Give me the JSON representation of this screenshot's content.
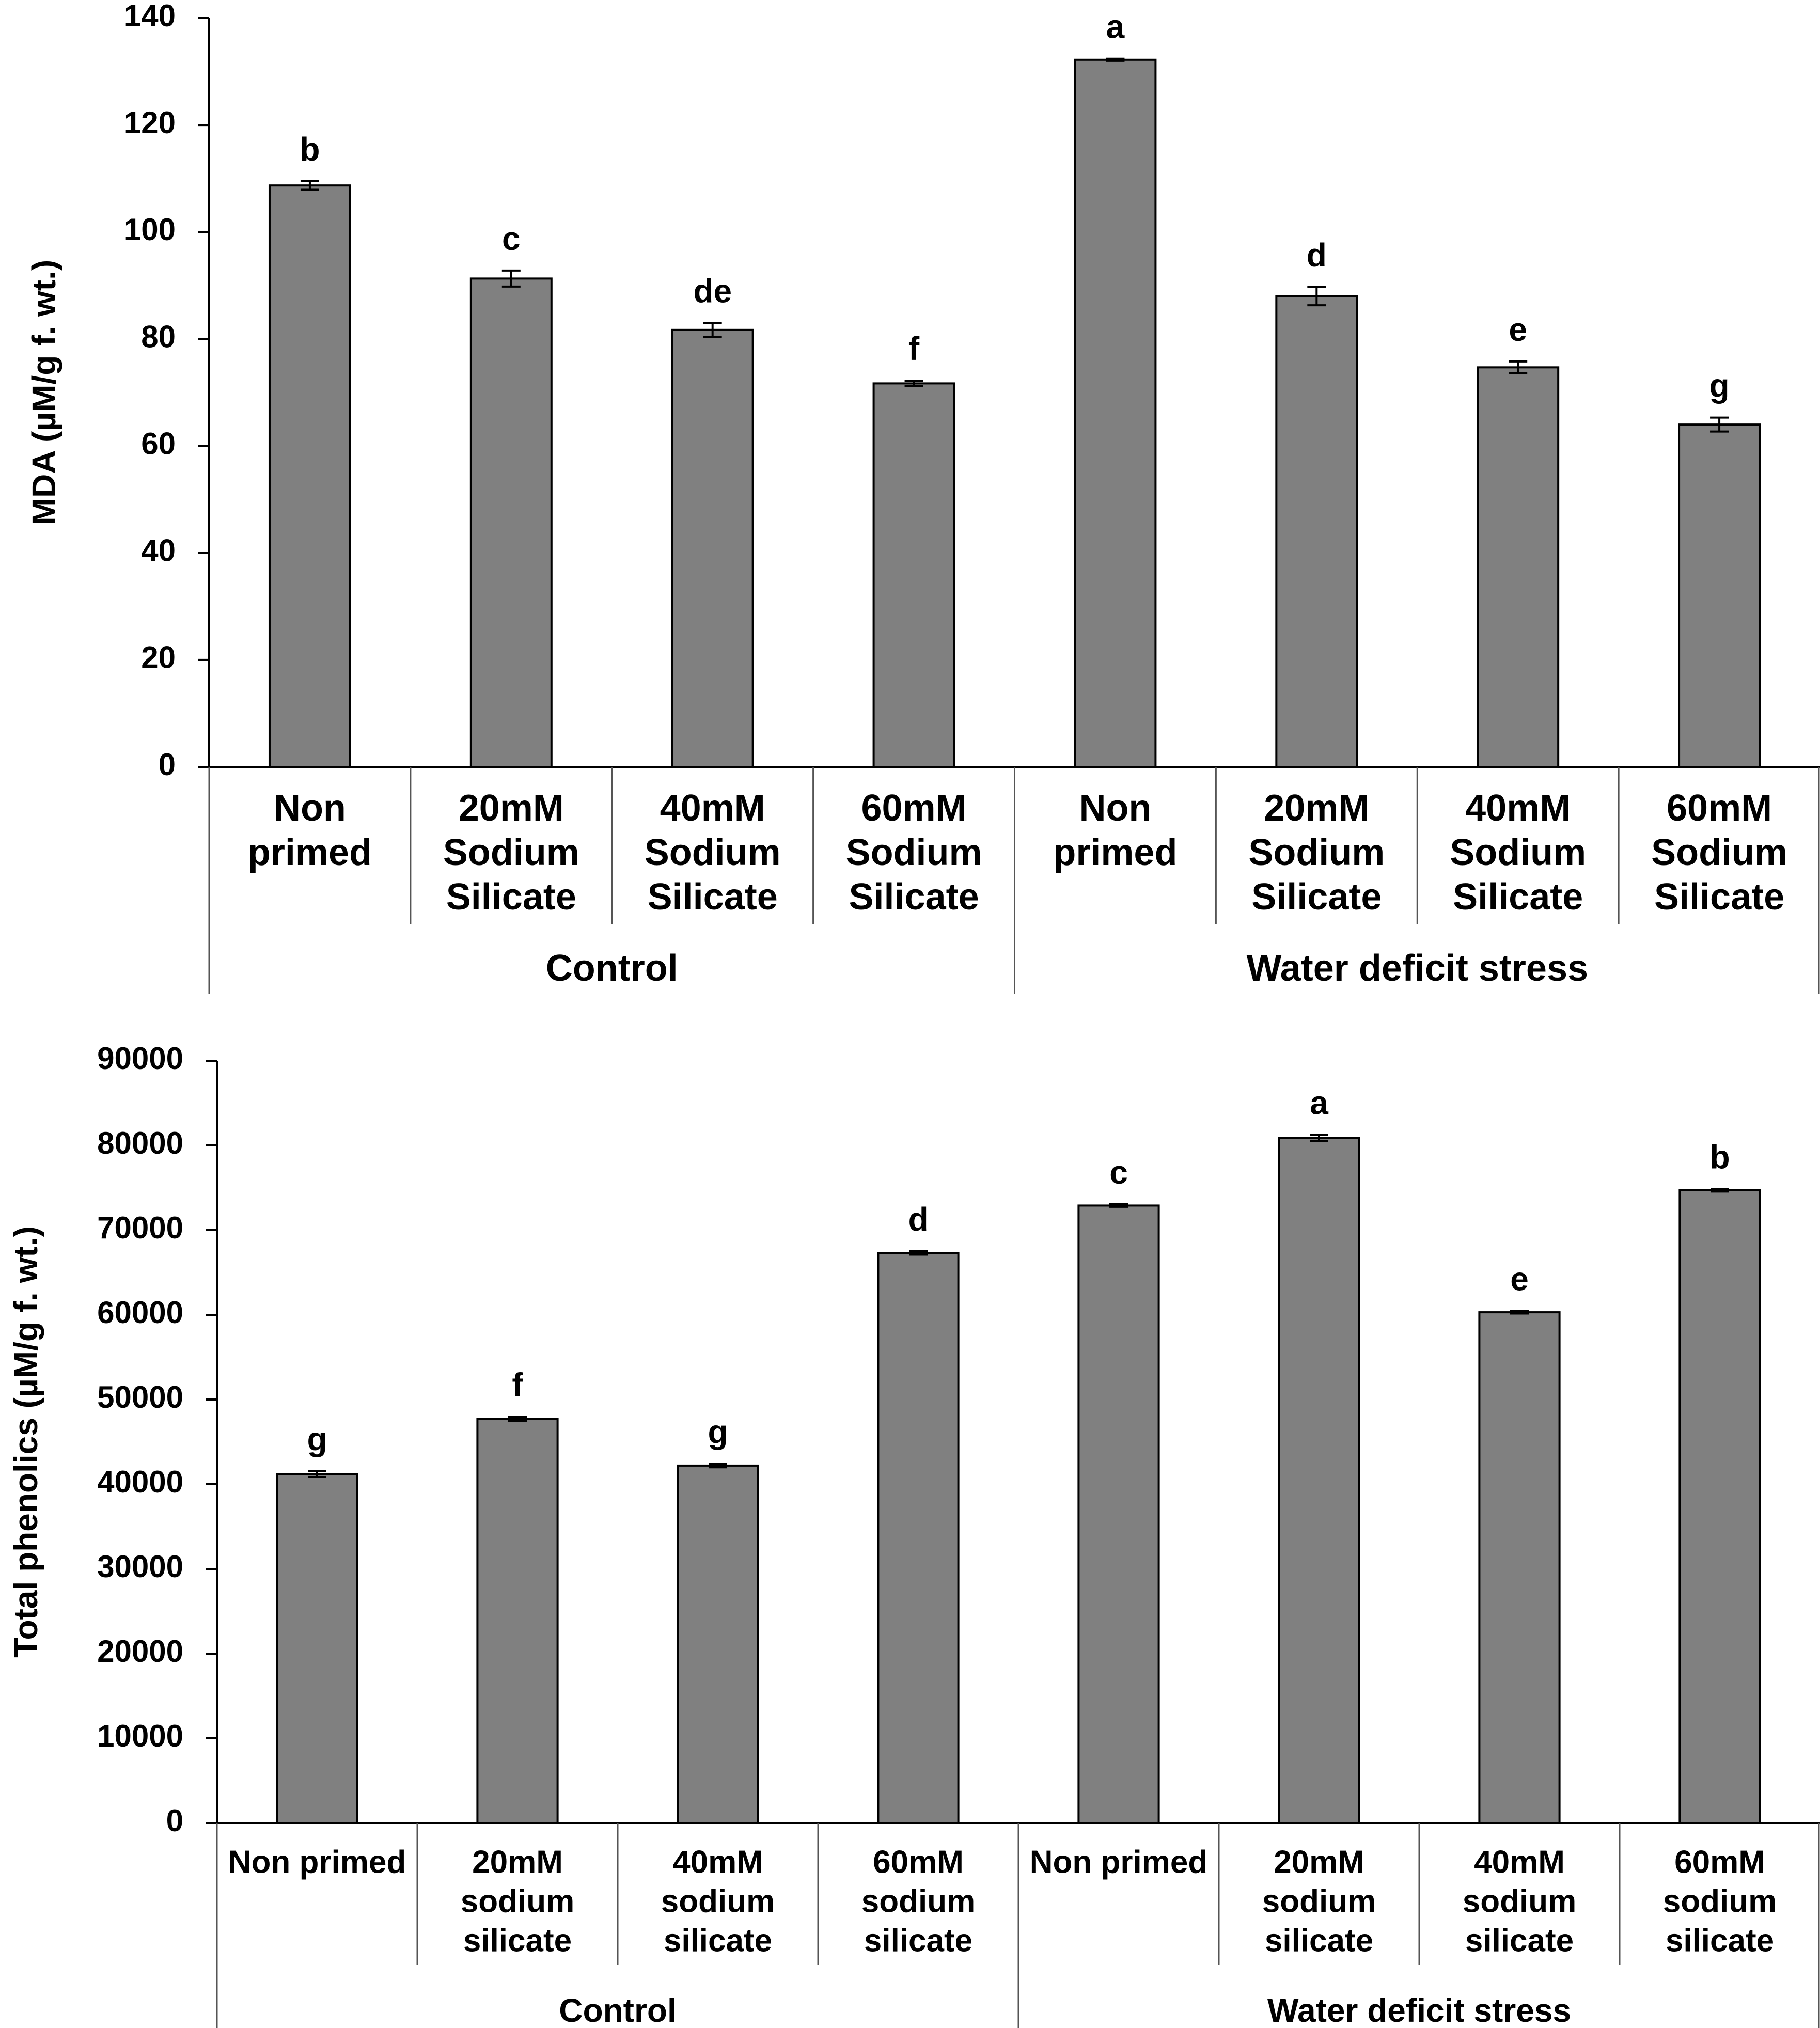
{
  "chart_data": [
    {
      "type": "bar",
      "title": "",
      "xlabel": "",
      "ylabel": "MDA (µM/g f. wt.)",
      "ylim": [
        0,
        140
      ],
      "yticks": [
        0,
        20,
        40,
        60,
        80,
        100,
        120,
        140
      ],
      "ytick_labels": [
        "0",
        "20",
        "40",
        "60",
        "80",
        "100",
        "120",
        "140"
      ],
      "grid": false,
      "legend": "none",
      "bar_color": "#808080",
      "categories": [
        [
          "Non",
          "primed"
        ],
        [
          "20mM",
          "Sodium",
          "Silicate"
        ],
        [
          "40mM",
          "Sodium",
          "Silicate"
        ],
        [
          "60mM",
          "Sodium",
          "Silicate"
        ],
        [
          "Non",
          "primed"
        ],
        [
          "20mM",
          "Sodium",
          "Silicate"
        ],
        [
          "40mM",
          "Sodium",
          "Silicate"
        ],
        [
          "60mM",
          "Sodium",
          "Silicate"
        ]
      ],
      "groups": [
        "Control",
        "Water deficit stress"
      ],
      "values": [
        108.7,
        91.3,
        81.7,
        71.7,
        132.2,
        88.0,
        74.7,
        64.0
      ],
      "errors": [
        0.8,
        1.5,
        1.3,
        0.5,
        0.2,
        1.7,
        1.1,
        1.3
      ],
      "letters": [
        "b",
        "c",
        "de",
        "f",
        "a",
        "d",
        "e",
        "g"
      ]
    },
    {
      "type": "bar",
      "title": "",
      "xlabel": "",
      "ylabel": "Total phenolics (µM/g f. wt.)",
      "ylim": [
        0,
        90000
      ],
      "yticks": [
        0,
        10000,
        20000,
        30000,
        40000,
        50000,
        60000,
        70000,
        80000,
        90000
      ],
      "ytick_labels": [
        "0",
        "10000",
        "20000",
        "30000",
        "40000",
        "50000",
        "60000",
        "70000",
        "80000",
        "90000"
      ],
      "grid": false,
      "legend": "none",
      "bar_color": "#808080",
      "categories": [
        [
          "Non primed"
        ],
        [
          "20mM",
          "sodium",
          "silicate"
        ],
        [
          "40mM",
          "sodium",
          "silicate"
        ],
        [
          "60mM",
          "sodium",
          "silicate"
        ],
        [
          "Non primed"
        ],
        [
          "20mM",
          "sodium",
          "silicate"
        ],
        [
          "40mM",
          "sodium",
          "silicate"
        ],
        [
          "60mM",
          "sodium",
          "silicate"
        ]
      ],
      "groups": [
        "Control",
        "Water deficit stress"
      ],
      "values": [
        41200,
        47700,
        42200,
        67300,
        72900,
        80900,
        60300,
        74700
      ],
      "errors": [
        350,
        250,
        200,
        200,
        150,
        350,
        150,
        150
      ],
      "letters": [
        "g",
        "f",
        "g",
        "d",
        "c",
        "a",
        "e",
        "b"
      ]
    }
  ]
}
